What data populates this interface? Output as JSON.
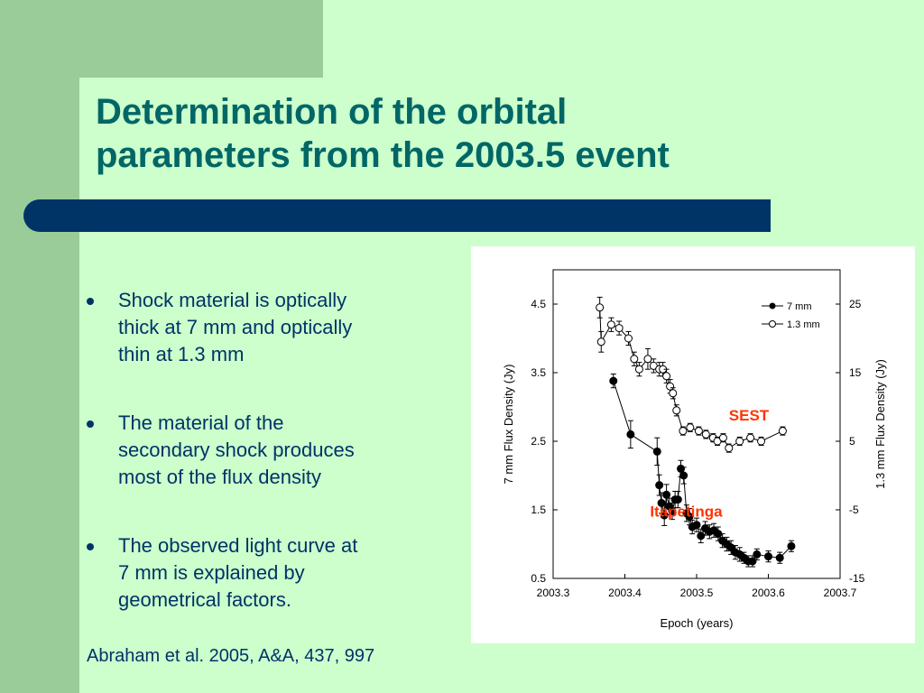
{
  "slide": {
    "title_lines": [
      "Determination of the orbital",
      "parameters from the 2003.5 event"
    ],
    "bullets": [
      {
        "lines": [
          "Shock material is optically",
          "thick at 7 mm and optically",
          "thin at 1.3 mm"
        ]
      },
      {
        "lines": [
          "The material of the",
          "secondary  shock produces",
          "most of the flux density"
        ]
      },
      {
        "lines": [
          "The observed light curve at",
          "7 mm is explained by",
          "geometrical factors."
        ]
      }
    ],
    "citation": "Abraham et al. 2005, A&A, 437, 997"
  },
  "colors": {
    "background": "#ccffcc",
    "sidebar": "#99cc99",
    "title": "#006666",
    "bar": "#003366",
    "text": "#003366",
    "annotation": "#ff3300"
  },
  "chart_data": {
    "type": "scatter",
    "xlabel": "Epoch (years)",
    "ylabel": "7 mm Flux  Density (Jy)",
    "y2label": "1.3 mm Flux Density (Jy)",
    "xlim": [
      2003.3,
      2003.7
    ],
    "ylim": [
      0.5,
      5.0
    ],
    "y2lim": [
      -15,
      30
    ],
    "x_ticks": [
      "2003.3",
      "2003.4",
      "2003.5",
      "2003.6",
      "2003.7"
    ],
    "y_ticks": [
      "0.5",
      "1.5",
      "2.5",
      "3.5",
      "4.5"
    ],
    "y2_ticks": [
      "-15",
      "-5",
      "5",
      "15",
      "25"
    ],
    "legend": {
      "position": "top-right",
      "entries": [
        "7 mm",
        "1.3 mm"
      ]
    },
    "annotations": [
      {
        "text": "SEST",
        "x": 2003.545,
        "y2": 8.0
      },
      {
        "text": "Itapetinga",
        "x": 2003.435,
        "y": 1.4
      }
    ],
    "series": [
      {
        "name": "7 mm",
        "axis": "left",
        "marker": "filled-circle",
        "x": [
          2003.384,
          2003.408,
          2003.445,
          2003.448,
          2003.451,
          2003.455,
          2003.458,
          2003.462,
          2003.466,
          2003.47,
          2003.474,
          2003.478,
          2003.482,
          2003.486,
          2003.49,
          2003.494,
          2003.5,
          2003.506,
          2003.512,
          2003.518,
          2003.524,
          2003.53,
          2003.536,
          2003.542,
          2003.548,
          2003.554,
          2003.56,
          2003.566,
          2003.572,
          2003.578,
          2003.584,
          2003.6,
          2003.616,
          2003.632
        ],
        "y": [
          3.38,
          2.6,
          2.35,
          1.86,
          1.6,
          1.42,
          1.72,
          1.55,
          1.48,
          1.65,
          1.65,
          2.1,
          2.0,
          1.45,
          1.4,
          1.25,
          1.28,
          1.12,
          1.23,
          1.18,
          1.2,
          1.15,
          1.05,
          1.0,
          0.95,
          0.88,
          0.85,
          0.8,
          0.75,
          0.75,
          0.85,
          0.82,
          0.8,
          0.97
        ],
        "err": [
          0.1,
          0.2,
          0.2,
          0.15,
          0.15,
          0.15,
          0.15,
          0.12,
          0.12,
          0.12,
          0.12,
          0.12,
          0.12,
          0.12,
          0.12,
          0.1,
          0.1,
          0.1,
          0.1,
          0.1,
          0.1,
          0.1,
          0.1,
          0.1,
          0.1,
          0.1,
          0.1,
          0.08,
          0.08,
          0.08,
          0.08,
          0.08,
          0.08,
          0.08
        ]
      },
      {
        "name": "1.3 mm",
        "axis": "right",
        "marker": "open-circle",
        "x": [
          2003.365,
          2003.367,
          2003.381,
          2003.392,
          2003.405,
          2003.413,
          2003.42,
          2003.432,
          2003.44,
          2003.448,
          2003.453,
          2003.458,
          2003.463,
          2003.467,
          2003.472,
          2003.481,
          2003.491,
          2003.503,
          2003.513,
          2003.523,
          2003.529,
          2003.537,
          2003.545,
          2003.56,
          2003.575,
          2003.59,
          2003.62
        ],
        "y": [
          24.5,
          19.5,
          22.0,
          21.5,
          20.0,
          17.0,
          15.5,
          17.0,
          16.0,
          15.5,
          15.5,
          14.5,
          13.0,
          12.0,
          9.5,
          6.5,
          7.0,
          6.5,
          6.0,
          5.5,
          5.0,
          5.5,
          4.0,
          5.0,
          5.5,
          5.0,
          6.5
        ],
        "err": [
          1.5,
          1.5,
          1.0,
          1.0,
          1.0,
          1.0,
          1.0,
          1.5,
          1.0,
          1.0,
          1.0,
          1.0,
          1.0,
          0.8,
          0.8,
          0.6,
          0.6,
          0.6,
          0.6,
          0.6,
          0.6,
          0.6,
          0.6,
          0.6,
          0.6,
          0.6,
          0.6
        ]
      }
    ]
  }
}
